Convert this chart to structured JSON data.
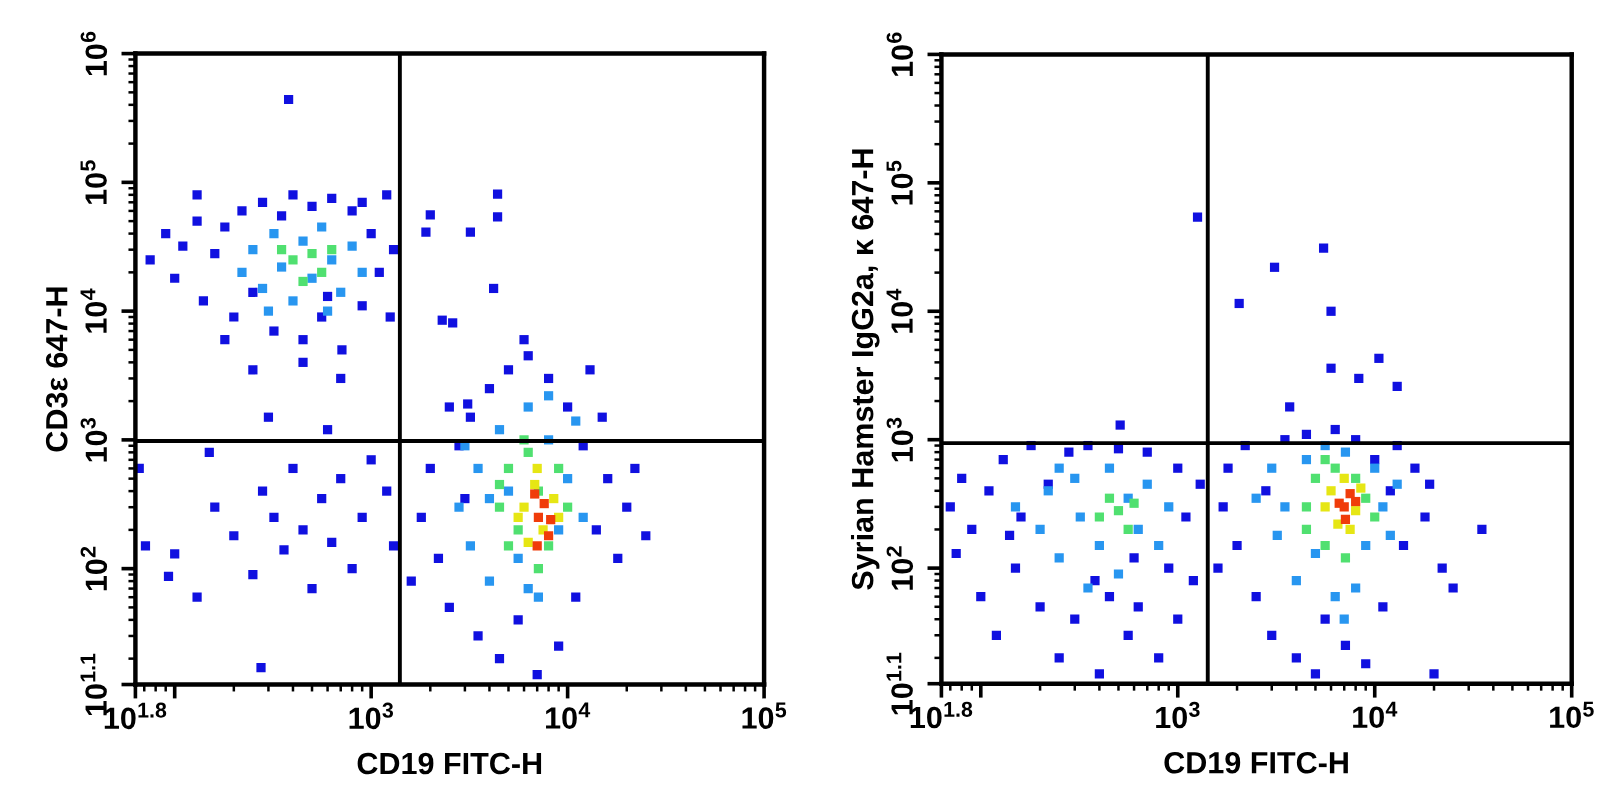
{
  "chart_data": [
    {
      "type": "scatter",
      "xlabel": "CD19 FITC-H",
      "ylabel": "CD3ε 647-H",
      "log": "xy",
      "marker": "square",
      "xlim": [
        63.1,
        100000
      ],
      "ylim": [
        12.59,
        1000000
      ],
      "xticks": [
        {
          "value": 63.1,
          "label": "10$^{1.8}$"
        },
        {
          "value": 100,
          "label": null
        },
        {
          "value": 1000,
          "label": "10$^{3}$"
        },
        {
          "value": 10000,
          "label": "10$^{4}$"
        },
        {
          "value": 100000,
          "label": "10$^{5}$"
        }
      ],
      "yticks": [
        {
          "value": 12.59,
          "label": "10$^{1.1}$"
        },
        {
          "value": 100,
          "label": "10$^{2}$"
        },
        {
          "value": 1000,
          "label": "10$^{3}$"
        },
        {
          "value": 10000,
          "label": "10$^{4}$"
        },
        {
          "value": 100000,
          "label": "10$^{5}$"
        },
        {
          "value": 1000000,
          "label": "10$^{6}$"
        }
      ],
      "ref_lines": [
        {
          "axis": "x",
          "value": 1400,
          "color": "#000000"
        },
        {
          "axis": "y",
          "value": 980,
          "color": "#000000"
        }
      ],
      "series": [
        {
          "color": "#1010e0",
          "x": [
            75,
            90,
            100,
            110,
            130,
            140,
            160,
            180,
            200,
            220,
            250,
            280,
            320,
            350,
            400,
            450,
            500,
            560,
            630,
            710,
            800,
            900,
            1000,
            1100,
            1200,
            1300,
            1250,
            900,
            180,
            250,
            450,
            700,
            130,
            600,
            100,
            130,
            160,
            200,
            250,
            280,
            320,
            360,
            400,
            450,
            500,
            560,
            630,
            700,
            800,
            900,
            1000,
            300,
            600,
            150,
            1200,
            1300,
            1800,
            2000,
            2200,
            2500,
            2800,
            3000,
            3500,
            3200,
            4000,
            4500,
            5000,
            5600,
            6300,
            7000,
            8000,
            9000,
            10000,
            11000,
            12000,
            13000,
            14000,
            16000,
            18000,
            20000,
            25000,
            22000,
            1600,
            2500,
            15000,
            6000,
            380,
            4400,
            4400,
            3200,
            2000,
            1900,
            4200,
            2300,
            2600,
            3100,
            275,
            93,
            71,
            66
          ],
          "values": [
            25000,
            40000,
            18000,
            32000,
            50000,
            12000,
            28000,
            45000,
            9000,
            60000,
            14000,
            70000,
            7000,
            55000,
            80000,
            6000,
            65000,
            9000,
            75000,
            5000,
            60000,
            11000,
            40000,
            20000,
            80000,
            30000,
            9000,
            70000,
            6000,
            3500,
            4000,
            3000,
            80000,
            13000,
            130,
            60,
            300,
            180,
            90,
            400,
            250,
            140,
            600,
            200,
            70,
            350,
            160,
            500,
            100,
            250,
            700,
            1500,
            1200,
            800,
            400,
            150,
            250,
            600,
            120,
            50,
            900,
            350,
            30,
            1500,
            2500,
            20,
            3500,
            40,
            4500,
            15,
            3000,
            25,
            1800,
            60,
            900,
            3500,
            200,
            500,
            120,
            300,
            180,
            600,
            80,
            1800,
            1500,
            6000,
            440000,
            81000,
            54000,
            41000,
            56000,
            41000,
            15000,
            8500,
            8100,
            1900,
            17,
            87,
            150,
            600
          ]
        },
        {
          "color": "#2896f0",
          "x": [
            220,
            250,
            280,
            320,
            350,
            400,
            450,
            500,
            560,
            630,
            700,
            800,
            900,
            300,
            600,
            2800,
            3200,
            3500,
            4000,
            4500,
            5000,
            5600,
            6300,
            7100,
            8000,
            9000,
            10000,
            11000,
            12000,
            8000,
            4000,
            6300,
            3000
          ],
          "values": [
            20000,
            30000,
            15000,
            40000,
            22000,
            12000,
            35000,
            18000,
            45000,
            25000,
            14000,
            32000,
            20000,
            10000,
            10000,
            300,
            150,
            600,
            80,
            1200,
            400,
            120,
            1800,
            60,
            1000,
            200,
            500,
            1400,
            250,
            2200,
            350,
            70,
            900
          ]
        },
        {
          "color": "#50e070",
          "x": [
            400,
            500,
            560,
            450,
            630,
            350,
            4500,
            5000,
            5600,
            6300,
            7100,
            8000,
            9000,
            6000,
            5000,
            10000,
            7100,
            4500
          ],
          "values": [
            25000,
            28000,
            20000,
            17000,
            30000,
            30000,
            300,
            600,
            200,
            800,
            400,
            150,
            600,
            1000,
            150,
            300,
            100,
            450
          ]
        },
        {
          "color": "#e6e614",
          "x": [
            6000,
            6800,
            7500,
            8500,
            6300,
            9000,
            7000,
            5600
          ],
          "values": [
            300,
            450,
            200,
            350,
            160,
            250,
            600,
            250
          ]
        },
        {
          "color": "#f03c0a",
          "x": [
            7100,
            7600,
            8000,
            7000,
            8200,
            6800
          ],
          "values": [
            250,
            320,
            180,
            150,
            240,
            380
          ]
        }
      ]
    },
    {
      "type": "scatter",
      "xlabel": "CD19 FITC-H",
      "ylabel": "Syrian Hamster IgG2a, κ 647-H",
      "log": "xy",
      "marker": "square",
      "xlim": [
        63.1,
        100000
      ],
      "ylim": [
        12.59,
        1000000
      ],
      "xticks": [
        {
          "value": 63.1,
          "label": "10$^{1.8}$"
        },
        {
          "value": 100,
          "label": null
        },
        {
          "value": 1000,
          "label": "10$^{3}$"
        },
        {
          "value": 10000,
          "label": "10$^{4}$"
        },
        {
          "value": 100000,
          "label": "10$^{5}$"
        }
      ],
      "yticks": [
        {
          "value": 12.59,
          "label": "10$^{1.1}$"
        },
        {
          "value": 100,
          "label": "10$^{2}$"
        },
        {
          "value": 1000,
          "label": "10$^{3}$"
        },
        {
          "value": 10000,
          "label": "10$^{4}$"
        },
        {
          "value": 100000,
          "label": "10$^{5}$"
        },
        {
          "value": 1000000,
          "label": "10$^{6}$"
        }
      ],
      "ref_lines": [
        {
          "axis": "x",
          "value": 1420,
          "color": "#000000"
        },
        {
          "axis": "y",
          "value": 940,
          "color": "#000000"
        }
      ],
      "series": [
        {
          "color": "#1010e0",
          "x": [
            70,
            75,
            80,
            90,
            100,
            110,
            120,
            130,
            150,
            160,
            180,
            200,
            220,
            250,
            280,
            300,
            350,
            400,
            450,
            500,
            560,
            630,
            700,
            800,
            900,
            1000,
            1100,
            1200,
            1300,
            1000,
            140,
            600,
            380,
            1700,
            1800,
            2000,
            2200,
            2500,
            2800,
            3000,
            3500,
            4000,
            4500,
            5000,
            5600,
            6300,
            7100,
            8000,
            9000,
            10000,
            11000,
            12000,
            13000,
            14000,
            16000,
            18000,
            20000,
            22000,
            25000,
            35000,
            1600,
            19000,
            1260,
            3100,
            2050,
            5500,
            6000,
            6000,
            10500,
            8300,
            13000,
            3700,
            510
          ],
          "values": [
            300,
            130,
            500,
            200,
            60,
            400,
            30,
            700,
            100,
            250,
            900,
            50,
            450,
            20,
            800,
            40,
            900,
            15,
            60,
            850,
            30,
            50,
            800,
            20,
            100,
            600,
            250,
            80,
            450,
            40,
            180,
            120,
            80,
            300,
            600,
            150,
            900,
            60,
            400,
            30,
            1000,
            20,
            1100,
            15,
            40,
            1200,
            25,
            1000,
            18,
            700,
            50,
            400,
            900,
            150,
            600,
            250,
            15,
            100,
            70,
            200,
            100,
            450,
            54000,
            22000,
            11500,
            31000,
            10000,
            3600,
            4300,
            3000,
            2600,
            1800,
            1300
          ]
        },
        {
          "color": "#2896f0",
          "x": [
            150,
            200,
            220,
            250,
            300,
            320,
            400,
            450,
            500,
            560,
            630,
            700,
            800,
            900,
            250,
            350,
            2500,
            3000,
            3200,
            4000,
            4500,
            5000,
            5600,
            6300,
            7100,
            8000,
            9000,
            10000,
            11000,
            12000,
            3500,
            13000,
            7000
          ],
          "values": [
            300,
            200,
            400,
            120,
            500,
            250,
            150,
            600,
            90,
            350,
            200,
            450,
            150,
            300,
            600,
            70,
            350,
            600,
            180,
            80,
            700,
            130,
            900,
            60,
            800,
            70,
            150,
            600,
            300,
            180,
            300,
            450,
            40
          ]
        },
        {
          "color": "#50e070",
          "x": [
            400,
            500,
            560,
            600,
            450,
            4500,
            5000,
            5600,
            6300,
            8000,
            9000,
            10000,
            7100,
            4500,
            5600
          ],
          "values": [
            250,
            280,
            200,
            320,
            350,
            300,
            500,
            150,
            600,
            500,
            350,
            250,
            120,
            200,
            700
          ]
        },
        {
          "color": "#e6e614",
          "x": [
            6000,
            7000,
            8000,
            6500,
            7500,
            5600,
            8500
          ],
          "values": [
            400,
            500,
            280,
            220,
            200,
            300,
            420
          ]
        },
        {
          "color": "#f03c0a",
          "x": [
            7000,
            7500,
            7100,
            8000,
            6600
          ],
          "values": [
            300,
            380,
            240,
            330,
            320
          ]
        }
      ]
    }
  ]
}
